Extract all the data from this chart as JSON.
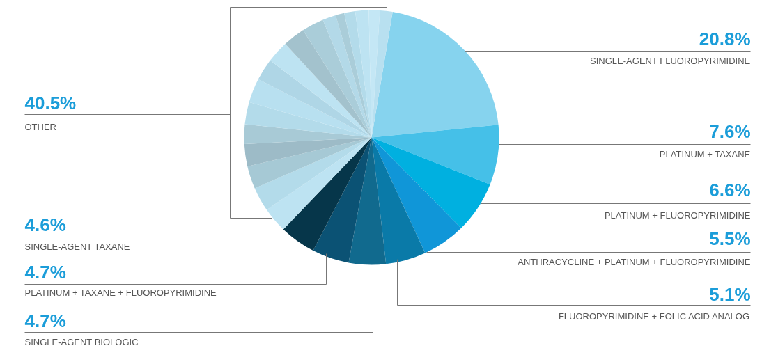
{
  "chart_data": {
    "type": "pie",
    "categories": [
      "SINGLE-AGENT FLUOROPYRIMIDINE",
      "PLATINUM + TAXANE",
      "PLATINUM + FLUOROPYRIMIDINE",
      "ANTHRACYCLINE + PLATINUM + FLUOROPYRIMIDINE",
      "FLUOROPYRIMIDINE + FOLIC ACID ANALOG",
      "SINGLE-AGENT BIOLOGIC",
      "PLATINUM + TAXANE + FLUOROPYRIMIDINE",
      "SINGLE-AGENT TAXANE",
      null,
      null,
      null,
      null,
      null,
      null,
      null,
      null,
      null,
      null,
      null,
      null,
      null,
      null,
      null,
      null,
      null
    ],
    "values": [
      20.8,
      7.6,
      6.6,
      5.5,
      5.1,
      4.7,
      4.7,
      4.6,
      3.2,
      3.1,
      2.9,
      2.8,
      2.5,
      2.8,
      3.1,
      2.8,
      2.8,
      2.8,
      2.8,
      1.7,
      1.1,
      1.4,
      1.7,
      1.4,
      1.6
    ],
    "colors": [
      "#86d3ee",
      "#45c0e8",
      "#00b0e0",
      "#1096d8",
      "#0a7aa8",
      "#116a8e",
      "#0b5274",
      "#06364a",
      "#bde3f2",
      "#b3dbea",
      "#a6c9d5",
      "#9dbbc7",
      "#a8cad6",
      "#b3dbea",
      "#b8e0f0",
      "#afd6e6",
      "#bde3f2",
      "#a3c2cd",
      "#aacdd9",
      "#b3d9e8",
      "#aacdd9",
      "#b3dbea",
      "#bde3f2",
      "#c4e7f5",
      "#b8e0f0"
    ],
    "value_labels": [
      "20.8%",
      "7.6%",
      "6.6%",
      "5.5%",
      "5.1%",
      "4.7%",
      "4.7%",
      "4.6%",
      null,
      null,
      null,
      null,
      null,
      null,
      null,
      null,
      null,
      null,
      null,
      null,
      null,
      null,
      null,
      null,
      null
    ],
    "annotations": [
      "40.5%",
      "OTHER"
    ]
  }
}
